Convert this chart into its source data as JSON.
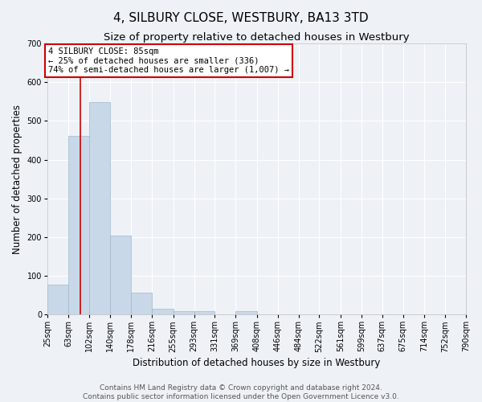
{
  "title": "4, SILBURY CLOSE, WESTBURY, BA13 3TD",
  "subtitle": "Size of property relative to detached houses in Westbury",
  "xlabel": "Distribution of detached houses by size in Westbury",
  "ylabel": "Number of detached properties",
  "bin_edges": [
    25,
    63,
    102,
    140,
    178,
    216,
    255,
    293,
    331,
    369,
    408,
    446,
    484,
    522,
    561,
    599,
    637,
    675,
    714,
    752,
    790
  ],
  "bar_heights": [
    78,
    462,
    548,
    204,
    57,
    15,
    9,
    9,
    0,
    9,
    0,
    0,
    0,
    0,
    0,
    0,
    0,
    0,
    0,
    0
  ],
  "bar_color": "#c8d8e8",
  "bar_edge_color": "#a0b8cc",
  "property_size": 85,
  "red_line_color": "#cc0000",
  "annotation_text": "4 SILBURY CLOSE: 85sqm\n← 25% of detached houses are smaller (336)\n74% of semi-detached houses are larger (1,007) →",
  "annotation_box_color": "#ffffff",
  "annotation_box_edge": "#cc0000",
  "ylim": [
    0,
    700
  ],
  "yticks": [
    0,
    100,
    200,
    300,
    400,
    500,
    600,
    700
  ],
  "background_color": "#eef2f7",
  "grid_color": "#ffffff",
  "footer_line1": "Contains HM Land Registry data © Crown copyright and database right 2024.",
  "footer_line2": "Contains public sector information licensed under the Open Government Licence v3.0.",
  "title_fontsize": 11,
  "subtitle_fontsize": 9.5,
  "axis_label_fontsize": 8.5,
  "tick_fontsize": 7,
  "annotation_fontsize": 7.5,
  "footer_fontsize": 6.5
}
